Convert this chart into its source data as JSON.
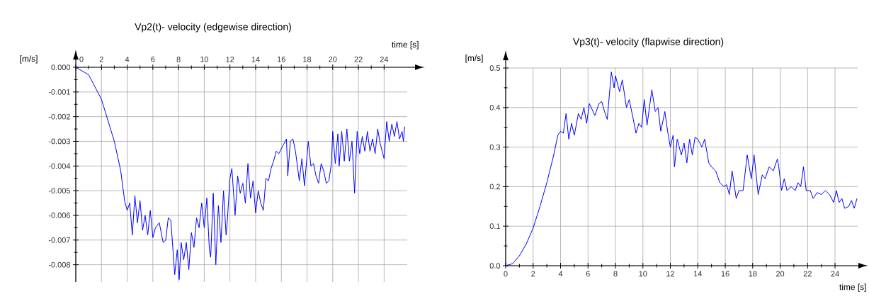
{
  "chart_data": [
    {
      "type": "line",
      "title": "Vp2(t)- velocity (edgewise direction)",
      "xlabel": "time [s]",
      "ylabel": "[m/s]",
      "grid": true,
      "xlim": [
        0,
        25.8
      ],
      "ylim": [
        -0.0087,
        0
      ],
      "xticks": [
        0,
        2,
        4,
        6,
        8,
        10,
        12,
        14,
        16,
        18,
        20,
        22,
        24
      ],
      "yticks": [
        {
          "value": 0,
          "label": "0.000"
        },
        {
          "value": -0.001,
          "label": "-0.001"
        },
        {
          "value": -0.002,
          "label": "-0.002"
        },
        {
          "value": -0.003,
          "label": "-0.003"
        },
        {
          "value": -0.004,
          "label": "-0.004"
        },
        {
          "value": -0.005,
          "label": "-0.005"
        },
        {
          "value": -0.006,
          "label": "-0.006"
        },
        {
          "value": -0.007,
          "label": "-0.007"
        },
        {
          "value": -0.008,
          "label": "-0.008"
        }
      ],
      "series": [
        {
          "color": "#0000ff",
          "x": [
            0,
            1,
            2,
            3,
            3.5,
            3.8,
            4,
            4.2,
            4.4,
            4.6,
            4.8,
            5,
            5.2,
            5.4,
            5.6,
            5.8,
            6,
            6.2,
            6.5,
            6.8,
            7,
            7.2,
            7.4,
            7.7,
            7.9,
            8.05,
            8.2,
            8.4,
            8.6,
            8.8,
            9,
            9.2,
            9.4,
            9.6,
            9.8,
            10,
            10.2,
            10.4,
            10.5,
            10.7,
            10.9,
            11.1,
            11.3,
            11.5,
            11.7,
            11.8,
            12,
            12.15,
            12.4,
            12.6,
            12.8,
            13,
            13.2,
            13.4,
            13.6,
            13.8,
            14,
            14.2,
            14.4,
            14.6,
            14.8,
            15,
            15.2,
            15.4,
            15.6,
            15.8,
            16,
            16.2,
            16.4,
            16.5,
            16.7,
            16.9,
            17.1,
            17.4,
            17.6,
            17.8,
            18.1,
            18.3,
            18.5,
            18.7,
            18.9,
            19.1,
            19.3,
            19.5,
            19.7,
            19.9,
            20,
            20.2,
            20.4,
            20.5,
            20.7,
            20.9,
            21.1,
            21.3,
            21.5,
            21.7,
            21.9,
            22.1,
            22.3,
            22.5,
            22.7,
            22.9,
            23.1,
            23.3,
            23.5,
            23.7,
            24,
            24.2,
            24.4,
            24.6,
            24.8,
            25,
            25.2,
            25.4,
            25.5,
            25.6
          ],
          "values": [
            0,
            -0.0003,
            -0.0013,
            -0.003,
            -0.0042,
            -0.0054,
            -0.0058,
            -0.0055,
            -0.0068,
            -0.0052,
            -0.0063,
            -0.0054,
            -0.0066,
            -0.006,
            -0.0068,
            -0.0058,
            -0.0069,
            -0.0065,
            -0.0063,
            -0.0071,
            -0.007,
            -0.0061,
            -0.0062,
            -0.0084,
            -0.0074,
            -0.0086,
            -0.0071,
            -0.0078,
            -0.0071,
            -0.0082,
            -0.0067,
            -0.0073,
            -0.0061,
            -0.0065,
            -0.0055,
            -0.0065,
            -0.0053,
            -0.0074,
            -0.0077,
            -0.0051,
            -0.008,
            -0.0056,
            -0.0071,
            -0.005,
            -0.0068,
            -0.0062,
            -0.0045,
            -0.0041,
            -0.006,
            -0.0044,
            -0.0051,
            -0.0047,
            -0.0055,
            -0.0039,
            -0.0053,
            -0.0046,
            -0.0059,
            -0.005,
            -0.0055,
            -0.0058,
            -0.0045,
            -0.0046,
            -0.0041,
            -0.0038,
            -0.0034,
            -0.0035,
            -0.0033,
            -0.0031,
            -0.0029,
            -0.0044,
            -0.003,
            -0.0029,
            -0.0034,
            -0.0046,
            -0.0037,
            -0.0048,
            -0.003,
            -0.004,
            -0.0039,
            -0.0044,
            -0.0047,
            -0.0039,
            -0.0042,
            -0.0047,
            -0.0046,
            -0.0039,
            -0.0026,
            -0.0039,
            -0.0027,
            -0.004,
            -0.0026,
            -0.0038,
            -0.0025,
            -0.0038,
            -0.003,
            -0.0051,
            -0.0026,
            -0.0035,
            -0.0028,
            -0.0034,
            -0.0026,
            -0.0034,
            -0.0029,
            -0.0035,
            -0.0025,
            -0.0031,
            -0.0037,
            -0.0022,
            -0.003,
            -0.0023,
            -0.0028,
            -0.0022,
            -0.0029,
            -0.0026,
            -0.003,
            -0.0024
          ]
        }
      ]
    },
    {
      "type": "line",
      "title": "Vp3(t)- velocity (flapwise direction)",
      "xlabel": "time [s]",
      "ylabel": "[m/s]",
      "grid": true,
      "xlim": [
        0,
        25.65
      ],
      "ylim": [
        0,
        0.5
      ],
      "xticks": [
        0,
        2,
        4,
        6,
        8,
        10,
        12,
        14,
        16,
        18,
        20,
        22,
        24
      ],
      "yticks": [
        {
          "value": 0,
          "label": "0.0"
        },
        0.1,
        0.2,
        0.3,
        0.4,
        0.5
      ],
      "series": [
        {
          "color": "#0000ff",
          "x": [
            0,
            0.5,
            1,
            1.5,
            2,
            2.5,
            3,
            3.5,
            3.8,
            4,
            4.2,
            4.4,
            4.6,
            4.8,
            5,
            5.3,
            5.5,
            5.7,
            5.9,
            6.1,
            6.5,
            6.8,
            7,
            7.2,
            7.4,
            7.7,
            7.9,
            8,
            8.3,
            8.5,
            8.8,
            9,
            9.3,
            9.5,
            9.7,
            9.9,
            10.1,
            10.3,
            10.65,
            10.9,
            11.1,
            11.3,
            11.6,
            11.8,
            12,
            12.2,
            12.3,
            12.5,
            12.8,
            13,
            13.2,
            13.4,
            13.6,
            13.8,
            14,
            14.3,
            14.5,
            14.8,
            15,
            15.3,
            15.6,
            15.9,
            16.1,
            16.3,
            16.5,
            16.8,
            17,
            17.3,
            17.6,
            17.9,
            18.1,
            18.4,
            18.7,
            18.9,
            19.2,
            19.5,
            19.8,
            19.9,
            20.1,
            20.3,
            20.5,
            20.8,
            21.1,
            21.3,
            21.5,
            21.7,
            21.9,
            22.2,
            22.4,
            22.7,
            23,
            23.3,
            23.6,
            23.9,
            24.1,
            24.3,
            24.5,
            24.7,
            25,
            25.2,
            25.4,
            25.6
          ],
          "values": [
            0,
            0.005,
            0.025,
            0.055,
            0.095,
            0.15,
            0.21,
            0.28,
            0.33,
            0.34,
            0.335,
            0.385,
            0.32,
            0.36,
            0.33,
            0.385,
            0.37,
            0.4,
            0.36,
            0.41,
            0.38,
            0.41,
            0.415,
            0.39,
            0.37,
            0.49,
            0.45,
            0.48,
            0.44,
            0.47,
            0.4,
            0.42,
            0.37,
            0.335,
            0.36,
            0.35,
            0.42,
            0.355,
            0.445,
            0.39,
            0.4,
            0.34,
            0.39,
            0.34,
            0.3,
            0.33,
            0.25,
            0.32,
            0.28,
            0.31,
            0.26,
            0.32,
            0.28,
            0.325,
            0.32,
            0.3,
            0.32,
            0.26,
            0.25,
            0.24,
            0.21,
            0.2,
            0.205,
            0.18,
            0.24,
            0.17,
            0.19,
            0.19,
            0.28,
            0.22,
            0.28,
            0.18,
            0.23,
            0.22,
            0.25,
            0.24,
            0.27,
            0.25,
            0.19,
            0.22,
            0.19,
            0.2,
            0.19,
            0.21,
            0.2,
            0.25,
            0.19,
            0.19,
            0.17,
            0.185,
            0.18,
            0.19,
            0.18,
            0.16,
            0.19,
            0.16,
            0.17,
            0.145,
            0.15,
            0.165,
            0.145,
            0.17
          ]
        }
      ]
    }
  ]
}
